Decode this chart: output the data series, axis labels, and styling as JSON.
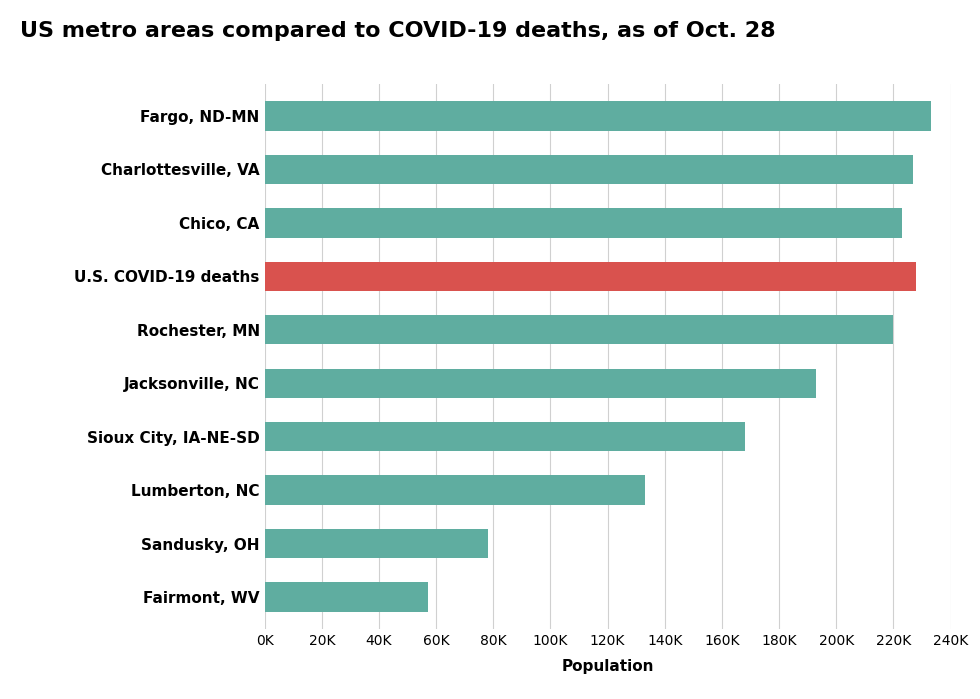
{
  "title": "US metro areas compared to COVID-19 deaths, as of Oct. 28",
  "categories": [
    "Fargo, ND-MN",
    "Charlottesville, VA",
    "Chico, CA",
    "U.S. COVID-19 deaths",
    "Rochester, MN",
    "Jacksonville, NC",
    "Sioux City, IA-NE-SD",
    "Lumberton, NC",
    "Sandusky, OH",
    "Fairmont, WV"
  ],
  "values": [
    233000,
    227000,
    223000,
    228000,
    220000,
    193000,
    168000,
    133000,
    78000,
    57000
  ],
  "bar_colors": [
    "#5fada0",
    "#5fada0",
    "#5fada0",
    "#d9524e",
    "#5fada0",
    "#5fada0",
    "#5fada0",
    "#5fada0",
    "#5fada0",
    "#5fada0"
  ],
  "xlabel": "Population",
  "xlim": [
    0,
    240000
  ],
  "xtick_values": [
    0,
    20000,
    40000,
    60000,
    80000,
    100000,
    120000,
    140000,
    160000,
    180000,
    200000,
    220000,
    240000
  ],
  "xtick_labels": [
    "0K",
    "20K",
    "40K",
    "60K",
    "80K",
    "100K",
    "120K",
    "140K",
    "160K",
    "180K",
    "200K",
    "220K",
    "240K"
  ],
  "background_color": "#ffffff",
  "grid_color": "#d0d0d0",
  "title_fontsize": 16,
  "label_fontsize": 11,
  "tick_fontsize": 10,
  "xlabel_fontsize": 11
}
